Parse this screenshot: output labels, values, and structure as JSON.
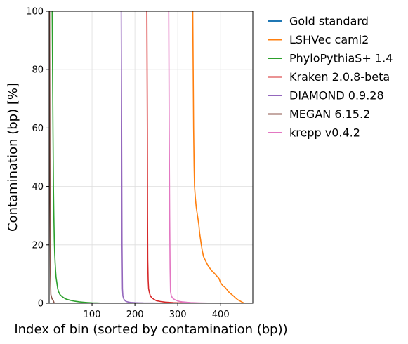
{
  "chart_data": {
    "type": "line",
    "xlabel": "Index of bin (sorted by contamination (bp))",
    "ylabel": "Contamination (bp) [%]",
    "xlim": [
      0,
      475
    ],
    "ylim": [
      0,
      100
    ],
    "xticks": [
      100,
      200,
      300,
      400
    ],
    "yticks": [
      0,
      20,
      40,
      60,
      80,
      100
    ],
    "grid": true,
    "legend_position": "outside-right",
    "series": [
      {
        "name": "Gold standard",
        "color": "#1f77b4",
        "x": [
          0,
          475
        ],
        "y": [
          0,
          0
        ]
      },
      {
        "name": "LSHVec cami2",
        "color": "#ff7f0e",
        "x": [
          335,
          336,
          337,
          338,
          339,
          341,
          343,
          345,
          347,
          349,
          351,
          353,
          355,
          357,
          360,
          365,
          370,
          375,
          380,
          385,
          390,
          393,
          396,
          400,
          405,
          410,
          415,
          420,
          425,
          430,
          435,
          440,
          445,
          450,
          455
        ],
        "y": [
          100,
          80,
          60,
          47,
          40,
          36,
          33,
          31,
          29,
          27,
          24,
          22,
          20,
          18,
          16,
          14.5,
          13,
          12,
          11,
          10.3,
          9.5,
          9,
          8.5,
          7,
          6,
          5.5,
          4.6,
          3.7,
          3.1,
          2.5,
          1.8,
          1.2,
          0.8,
          0.4,
          0
        ]
      },
      {
        "name": "PhyloPythiaS+ 1.4",
        "color": "#2ca02c",
        "x": [
          7,
          8,
          9,
          10,
          11,
          12,
          13,
          14,
          15,
          16,
          18,
          20,
          22,
          25,
          30,
          35,
          40,
          50,
          60,
          70,
          80,
          90,
          100,
          110,
          120,
          140
        ],
        "y": [
          100,
          80,
          58,
          40,
          30,
          22,
          17,
          14,
          11,
          9,
          7,
          5,
          4,
          3,
          2.3,
          1.8,
          1.4,
          1,
          0.7,
          0.5,
          0.35,
          0.25,
          0.15,
          0.1,
          0.05,
          0
        ]
      },
      {
        "name": "Kraken 2.0.8-beta",
        "color": "#d62728",
        "x": [
          228,
          229,
          229.5,
          230,
          231,
          232,
          234,
          236,
          240,
          245,
          250,
          260,
          270,
          280,
          290,
          300,
          320,
          340,
          360,
          380,
          400
        ],
        "y": [
          100,
          60,
          30,
          15,
          8,
          5,
          3.5,
          2.5,
          1.8,
          1.3,
          0.9,
          0.6,
          0.4,
          0.3,
          0.2,
          0.15,
          0.1,
          0.05,
          0.03,
          0.01,
          0
        ]
      },
      {
        "name": "DIAMOND 0.9.28",
        "color": "#9467bd",
        "x": [
          168,
          169,
          170,
          171,
          172,
          174,
          177,
          180,
          185,
          190,
          200,
          210,
          220,
          240,
          260,
          280,
          300,
          320,
          340
        ],
        "y": [
          100,
          60,
          20,
          5,
          2.5,
          1.5,
          0.9,
          0.6,
          0.4,
          0.3,
          0.2,
          0.15,
          0.1,
          0.07,
          0.05,
          0.03,
          0.02,
          0.01,
          0
        ]
      },
      {
        "name": "MEGAN 6.15.2",
        "color": "#8c564b",
        "x": [
          1,
          2,
          3,
          4,
          6,
          8,
          10,
          12
        ],
        "y": [
          100,
          40,
          10,
          3,
          1.8,
          1.2,
          0.8,
          0
        ]
      },
      {
        "name": "krepp v0.4.2",
        "color": "#e377c2",
        "x": [
          279,
          280,
          281,
          282,
          283,
          285,
          287,
          290,
          295,
          300,
          305,
          310,
          320,
          330,
          340,
          350,
          360,
          370,
          380,
          390,
          400
        ],
        "y": [
          100,
          60,
          30,
          12,
          4,
          2.5,
          2,
          1.5,
          1.1,
          0.8,
          0.6,
          0.5,
          0.35,
          0.25,
          0.18,
          0.12,
          0.08,
          0.05,
          0.03,
          0.01,
          0
        ]
      }
    ]
  }
}
